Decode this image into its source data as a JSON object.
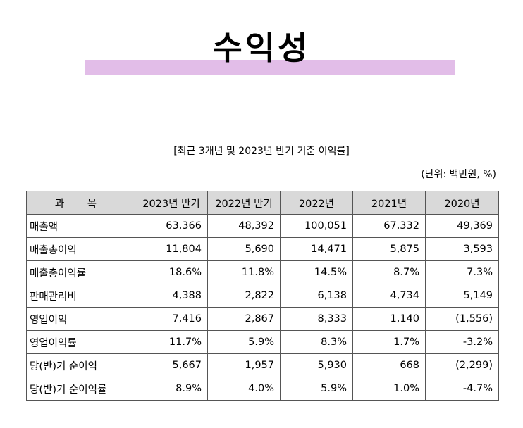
{
  "title": "수익성",
  "subtitle": "[최근 3개년 및 2023년 반기 기준 이익률]",
  "unit": "(단위: 백만원, %)",
  "table": {
    "headers": [
      "과 목",
      "2023년 반기",
      "2022년 반기",
      "2022년",
      "2021년",
      "2020년"
    ],
    "rows": [
      {
        "label": "매출액",
        "values": [
          "63,366",
          "48,392",
          "100,051",
          "67,332",
          "49,369"
        ]
      },
      {
        "label": "매출총이익",
        "values": [
          "11,804",
          "5,690",
          "14,471",
          "5,875",
          "3,593"
        ]
      },
      {
        "label": "매출총이익률",
        "values": [
          "18.6%",
          "11.8%",
          "14.5%",
          "8.7%",
          "7.3%"
        ]
      },
      {
        "label": "판매관리비",
        "values": [
          "4,388",
          "2,822",
          "6,138",
          "4,734",
          "5,149"
        ]
      },
      {
        "label": "영업이익",
        "values": [
          "7,416",
          "2,867",
          "8,333",
          "1,140",
          "(1,556)"
        ]
      },
      {
        "label": "영업이익률",
        "values": [
          "11.7%",
          "5.9%",
          "8.3%",
          "1.7%",
          "-3.2%"
        ]
      },
      {
        "label": "당(반)기 순이익",
        "values": [
          "5,667",
          "1,957",
          "5,930",
          "668",
          "(2,299)"
        ]
      },
      {
        "label": "당(반)기 순이익률",
        "values": [
          "8.9%",
          "4.0%",
          "5.9%",
          "1.0%",
          "-4.7%"
        ]
      }
    ]
  }
}
